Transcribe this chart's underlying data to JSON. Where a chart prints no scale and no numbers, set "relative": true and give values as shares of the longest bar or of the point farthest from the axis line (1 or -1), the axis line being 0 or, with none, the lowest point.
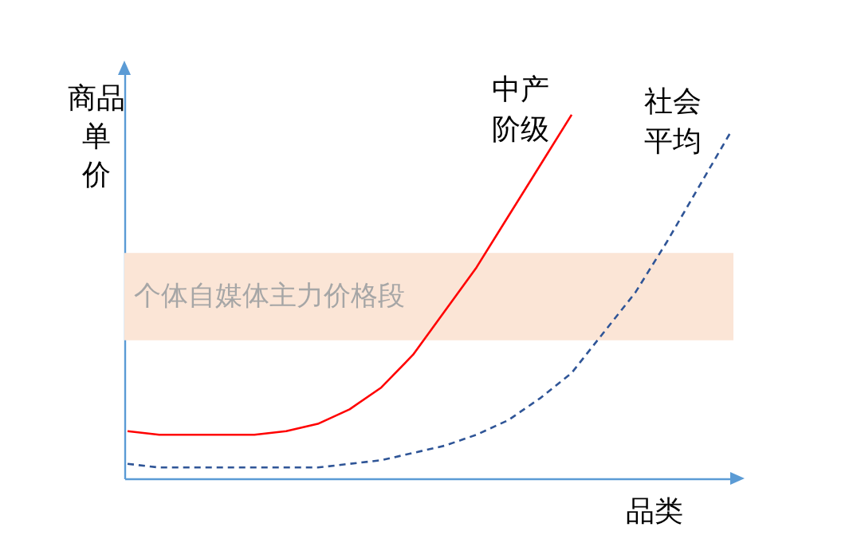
{
  "chart_data": {
    "type": "line",
    "relative": true,
    "xlabel": "品类",
    "ylabel": "商品单价",
    "categories": [
      null,
      null,
      null,
      null,
      null,
      null,
      null,
      null,
      null,
      null,
      null,
      null,
      null,
      null,
      null,
      null,
      null,
      null,
      null,
      null
    ],
    "series": [
      {
        "name": "中产阶级",
        "color": "#ff0000",
        "line_style": "solid",
        "values": [
          0.13,
          0.12,
          0.12,
          0.12,
          0.12,
          0.13,
          0.15,
          0.19,
          0.25,
          0.34,
          0.46,
          0.58,
          0.72,
          0.86,
          1,
          null,
          null,
          null,
          null,
          null
        ]
      },
      {
        "name": "社会平均",
        "color": "#2f5597",
        "line_style": "dashed",
        "values": [
          0.04,
          0.03,
          0.03,
          0.03,
          0.03,
          0.03,
          0.03,
          0.04,
          0.05,
          0.07,
          0.09,
          0.12,
          0.16,
          0.22,
          0.29,
          0.4,
          0.51,
          0.65,
          0.8,
          0.95
        ]
      }
    ],
    "bands": [
      {
        "axis": "y",
        "from": 0.38,
        "to": 0.62,
        "label": "个体自媒体主力价格段",
        "color": "#fbe5d6"
      }
    ],
    "legend": false,
    "marker": "none"
  }
}
